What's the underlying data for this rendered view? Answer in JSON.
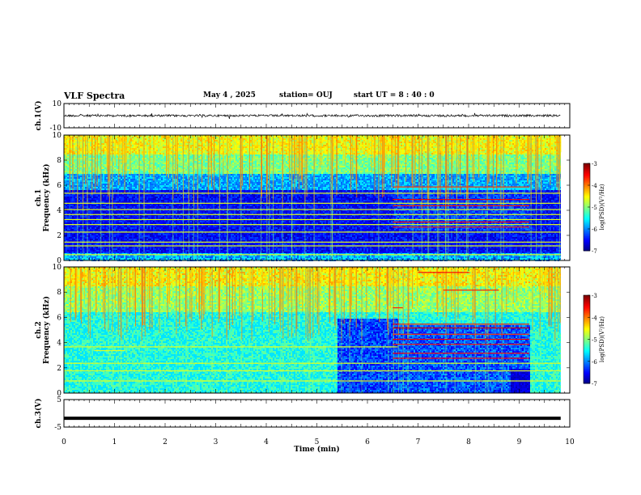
{
  "header": {
    "title": "VLF Spectra",
    "date": "May 4  , 2025",
    "station": "station= OUJ",
    "start": "start  UT =   8  : 40 : 0"
  },
  "chart_data": [
    {
      "type": "line",
      "panel": "ch1-waveform",
      "ylabel": "ch.1(V)",
      "ylim": [
        -10,
        10
      ],
      "yticks": [
        10,
        -10
      ],
      "x_range_min": [
        0,
        9.82
      ],
      "level_v": 0,
      "color": "#000000"
    },
    {
      "type": "heatmap",
      "panel": "ch1-spectrogram",
      "ylabel": "ch.1\nFrequency (kHz)",
      "ylim_khz": [
        0,
        10
      ],
      "yticks": [
        0,
        2,
        4,
        6,
        8,
        10
      ],
      "x_range_min": [
        0,
        9.82
      ],
      "colorbar": {
        "label": "log(PSD)(V²/Hz)",
        "range": [
          -7,
          -3
        ],
        "ticks": [
          -3,
          -4,
          -5,
          -6,
          -7
        ]
      }
    },
    {
      "type": "heatmap",
      "panel": "ch2-spectrogram",
      "ylabel": "ch.2\nFrequency (kHz)",
      "ylim_khz": [
        0,
        10
      ],
      "yticks": [
        0,
        2,
        4,
        6,
        8,
        10
      ],
      "x_range_min": [
        0,
        9.82
      ],
      "colorbar": {
        "label": "log(PSD)(V²/Hz)",
        "range": [
          -7,
          -3
        ],
        "ticks": [
          -3,
          -4,
          -5,
          -6,
          -7
        ]
      }
    },
    {
      "type": "line",
      "panel": "ch3-waveform",
      "ylabel": "ch.3(V)",
      "ylim": [
        -5,
        5
      ],
      "yticks": [
        5,
        -5
      ],
      "x_range_min": [
        0,
        9.82
      ],
      "level_v": -1.8,
      "color": "#000000"
    }
  ],
  "xaxis": {
    "label": "Time (min)",
    "xlim": [
      0,
      10
    ],
    "ticks": [
      0,
      1,
      2,
      3,
      4,
      5,
      6,
      7,
      8,
      9,
      10
    ]
  },
  "colors": {
    "jet_low": "#00007f",
    "jet_high": "#7f0000",
    "trace": "#000000"
  }
}
